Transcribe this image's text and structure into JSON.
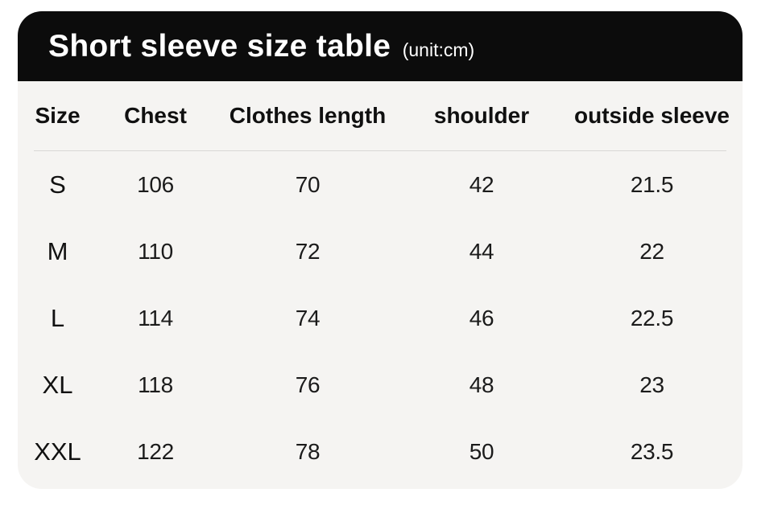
{
  "header": {
    "title": "Short sleeve size table",
    "unit": "(unit:cm)"
  },
  "table": {
    "columns": [
      "Size",
      "Chest",
      "Clothes length",
      "shoulder",
      "outside sleeve"
    ],
    "rows": [
      [
        "S",
        "106",
        "70",
        "42",
        "21.5"
      ],
      [
        "M",
        "110",
        "72",
        "44",
        "22"
      ],
      [
        "L",
        "114",
        "74",
        "46",
        "22.5"
      ],
      [
        "XL",
        "118",
        "76",
        "48",
        "23"
      ],
      [
        "XXL",
        "122",
        "78",
        "50",
        "23.5"
      ]
    ]
  },
  "chart_data": {
    "type": "table",
    "title": "Short sleeve size table (unit:cm)",
    "unit": "cm",
    "columns": [
      "Size",
      "Chest",
      "Clothes length",
      "shoulder",
      "outside sleeve"
    ],
    "rows": [
      [
        "S",
        106,
        70,
        42,
        21.5
      ],
      [
        "M",
        110,
        72,
        44,
        22
      ],
      [
        "L",
        114,
        74,
        46,
        22.5
      ],
      [
        "XL",
        118,
        76,
        48,
        23
      ],
      [
        "XXL",
        122,
        78,
        50,
        23.5
      ]
    ]
  },
  "colors": {
    "header_bg": "#0c0c0c",
    "header_text": "#ffffff",
    "card_bg": "#f5f4f2",
    "body_text": "#1b1b1b",
    "divider": "#d9d8d5",
    "page_bg": "#ffffff"
  }
}
